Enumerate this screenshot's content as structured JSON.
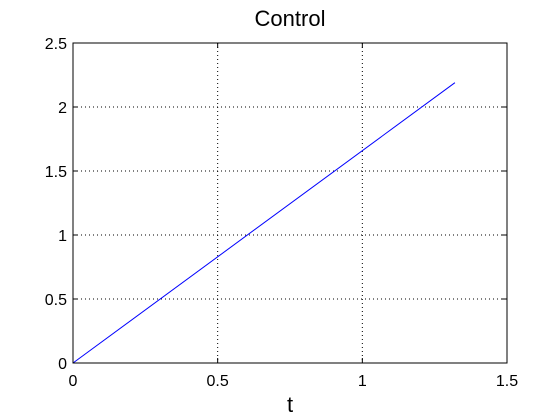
{
  "chart_data": {
    "type": "line",
    "title": "Control",
    "xlabel": "t",
    "ylabel": "",
    "xlim": [
      0,
      1.5
    ],
    "ylim": [
      0,
      2.5
    ],
    "xticks": [
      0,
      0.5,
      1,
      1.5
    ],
    "xtick_labels": [
      "0",
      "0.5",
      "1",
      "1.5"
    ],
    "yticks": [
      0,
      0.5,
      1,
      1.5,
      2,
      2.5
    ],
    "ytick_labels": [
      "0",
      "0.5",
      "1",
      "1.5",
      "2",
      "2.5"
    ],
    "grid": true,
    "series": [
      {
        "color": "#0000ff",
        "x": [
          0,
          1.32
        ],
        "y": [
          0,
          2.19
        ]
      }
    ]
  }
}
